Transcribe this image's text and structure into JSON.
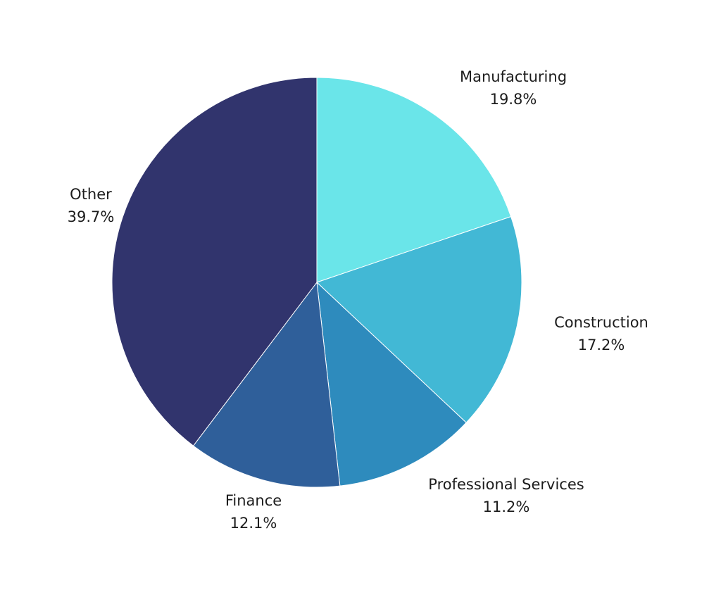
{
  "chart_data": {
    "type": "pie",
    "title": "",
    "categories": [
      "Manufacturing",
      "Construction",
      "Professional Services",
      "Finance",
      "Other"
    ],
    "values": [
      19.8,
      17.2,
      11.2,
      12.1,
      39.7
    ],
    "value_labels": [
      "19.8%",
      "17.2%",
      "11.2%",
      "12.1%",
      "39.7%"
    ],
    "colors": [
      "#6AE5E9",
      "#42B8D5",
      "#2E8BBD",
      "#2F5F9A",
      "#31346D"
    ],
    "start_angle": "12 o'clock",
    "direction": "clockwise",
    "legend": "none",
    "labels": "outside slices"
  }
}
